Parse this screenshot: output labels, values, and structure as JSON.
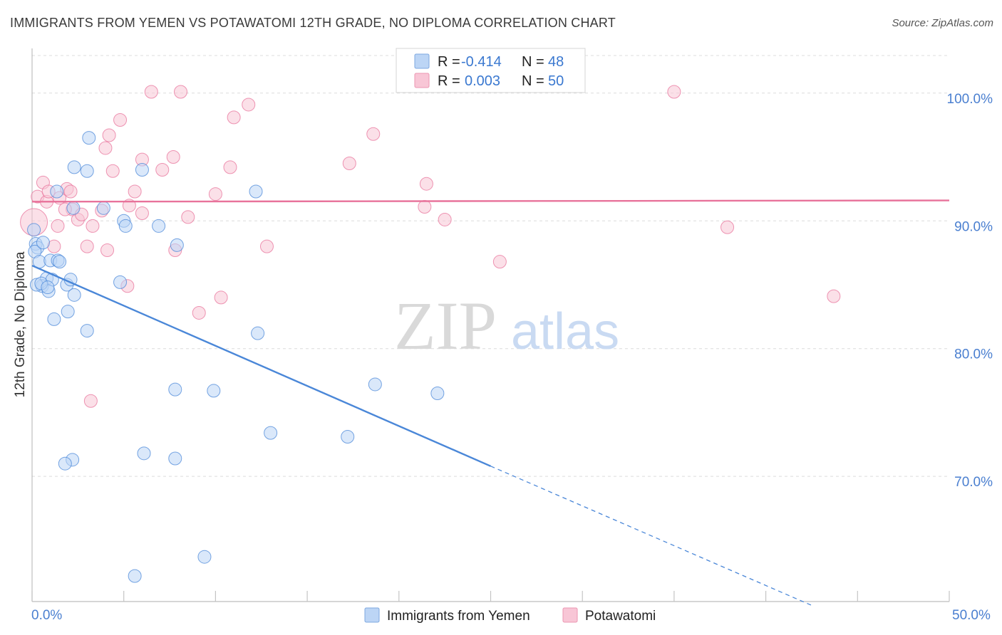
{
  "title": "IMMIGRANTS FROM YEMEN VS POTAWATOMI 12TH GRADE, NO DIPLOMA CORRELATION CHART",
  "source": "Source: ZipAtlas.com",
  "watermark": {
    "zip": "ZIP",
    "atlas": "atlas"
  },
  "legend_top": [
    {
      "r_label": "R =",
      "r_value": "-0.414",
      "n_label": "N =",
      "n_value": "48",
      "color": "#a9c8f0"
    },
    {
      "r_label": "R =",
      "r_value": "0.003",
      "n_label": "N =",
      "n_value": "50",
      "color": "#f5b9cc"
    }
  ],
  "chart_data": {
    "type": "scatter",
    "title": "IMMIGRANTS FROM YEMEN VS POTAWATOMI 12TH GRADE, NO DIPLOMA CORRELATION CHART",
    "xlabel": "",
    "ylabel": "12th Grade, No Diploma",
    "xlim": [
      0,
      50
    ],
    "ylim": [
      60.2,
      103.5
    ],
    "x_tick_labels": [
      "0.0%",
      "50.0%"
    ],
    "y_ticks": [
      100,
      90,
      80,
      70
    ],
    "y_tick_labels": [
      "100.0%",
      "90.0%",
      "80.0%",
      "70.0%"
    ],
    "grid": true,
    "legend_position": "bottom-center",
    "series": [
      {
        "name": "Immigrants from Yemen",
        "color": "#4a87d8",
        "fill": "#bcd5f5",
        "trend": {
          "x": [
            0,
            25
          ],
          "y": [
            86.5,
            70.8
          ],
          "dashed_to": [
            42.5,
            59.9
          ]
        },
        "points": [
          [
            0.1,
            89.3
          ],
          [
            0.2,
            88.2
          ],
          [
            0.3,
            87.9
          ],
          [
            0.15,
            87.6
          ],
          [
            0.6,
            88.3
          ],
          [
            0.4,
            86.8
          ],
          [
            0.8,
            85.5
          ],
          [
            1.0,
            86.9
          ],
          [
            1.4,
            86.9
          ],
          [
            1.5,
            86.8
          ],
          [
            1.1,
            85.4
          ],
          [
            0.55,
            84.9
          ],
          [
            0.9,
            84.5
          ],
          [
            1.9,
            85.0
          ],
          [
            2.1,
            85.4
          ],
          [
            1.95,
            82.9
          ],
          [
            1.2,
            82.3
          ],
          [
            2.3,
            84.2
          ],
          [
            3.0,
            81.4
          ],
          [
            3.1,
            96.5
          ],
          [
            3.0,
            93.9
          ],
          [
            2.3,
            94.2
          ],
          [
            1.35,
            92.3
          ],
          [
            2.25,
            91.0
          ],
          [
            3.9,
            91.0
          ],
          [
            4.8,
            85.2
          ],
          [
            5.0,
            90.0
          ],
          [
            5.1,
            89.6
          ],
          [
            6.0,
            94.0
          ],
          [
            6.9,
            89.6
          ],
          [
            7.9,
            88.1
          ],
          [
            12.2,
            92.3
          ],
          [
            12.3,
            81.2
          ],
          [
            7.8,
            76.8
          ],
          [
            9.9,
            76.7
          ],
          [
            18.7,
            77.2
          ],
          [
            22.1,
            76.5
          ],
          [
            13.0,
            73.4
          ],
          [
            17.2,
            73.1
          ],
          [
            6.1,
            71.8
          ],
          [
            7.8,
            71.4
          ],
          [
            2.2,
            71.3
          ],
          [
            1.8,
            71.0
          ],
          [
            9.4,
            63.7
          ],
          [
            5.6,
            62.2
          ],
          [
            0.25,
            85.0
          ],
          [
            0.5,
            85.1
          ],
          [
            0.85,
            84.8
          ]
        ]
      },
      {
        "name": "Potawatomi",
        "color": "#e8739b",
        "fill": "#f8c6d6",
        "trend": {
          "x": [
            0,
            50
          ],
          "y": [
            91.5,
            91.6
          ]
        },
        "points": [
          [
            0.1,
            89.9
          ],
          [
            0.3,
            91.9
          ],
          [
            0.6,
            93.0
          ],
          [
            0.8,
            91.5
          ],
          [
            1.5,
            91.8
          ],
          [
            1.9,
            92.5
          ],
          [
            2.1,
            92.3
          ],
          [
            2.2,
            90.9
          ],
          [
            2.5,
            90.1
          ],
          [
            2.7,
            90.5
          ],
          [
            1.4,
            89.6
          ],
          [
            1.2,
            88.0
          ],
          [
            3.0,
            88.0
          ],
          [
            3.3,
            89.6
          ],
          [
            3.8,
            90.8
          ],
          [
            4.0,
            95.7
          ],
          [
            4.2,
            96.7
          ],
          [
            4.4,
            93.9
          ],
          [
            4.8,
            97.9
          ],
          [
            5.3,
            91.2
          ],
          [
            5.6,
            92.3
          ],
          [
            6.0,
            94.8
          ],
          [
            6.0,
            90.6
          ],
          [
            7.1,
            94.0
          ],
          [
            7.7,
            95.0
          ],
          [
            8.1,
            100.1
          ],
          [
            6.5,
            100.1
          ],
          [
            7.8,
            87.7
          ],
          [
            8.5,
            90.3
          ],
          [
            10.0,
            92.1
          ],
          [
            10.8,
            94.2
          ],
          [
            11.0,
            98.1
          ],
          [
            11.8,
            99.1
          ],
          [
            12.8,
            88.0
          ],
          [
            9.1,
            82.8
          ],
          [
            10.3,
            84.0
          ],
          [
            4.1,
            87.7
          ],
          [
            5.2,
            84.9
          ],
          [
            3.2,
            75.9
          ],
          [
            17.3,
            94.5
          ],
          [
            18.6,
            96.8
          ],
          [
            21.5,
            92.9
          ],
          [
            21.4,
            91.1
          ],
          [
            22.5,
            90.1
          ],
          [
            25.5,
            86.8
          ],
          [
            35.0,
            100.1
          ],
          [
            37.9,
            89.5
          ],
          [
            43.7,
            84.1
          ],
          [
            0.9,
            92.3
          ],
          [
            1.8,
            90.9
          ]
        ]
      }
    ]
  }
}
